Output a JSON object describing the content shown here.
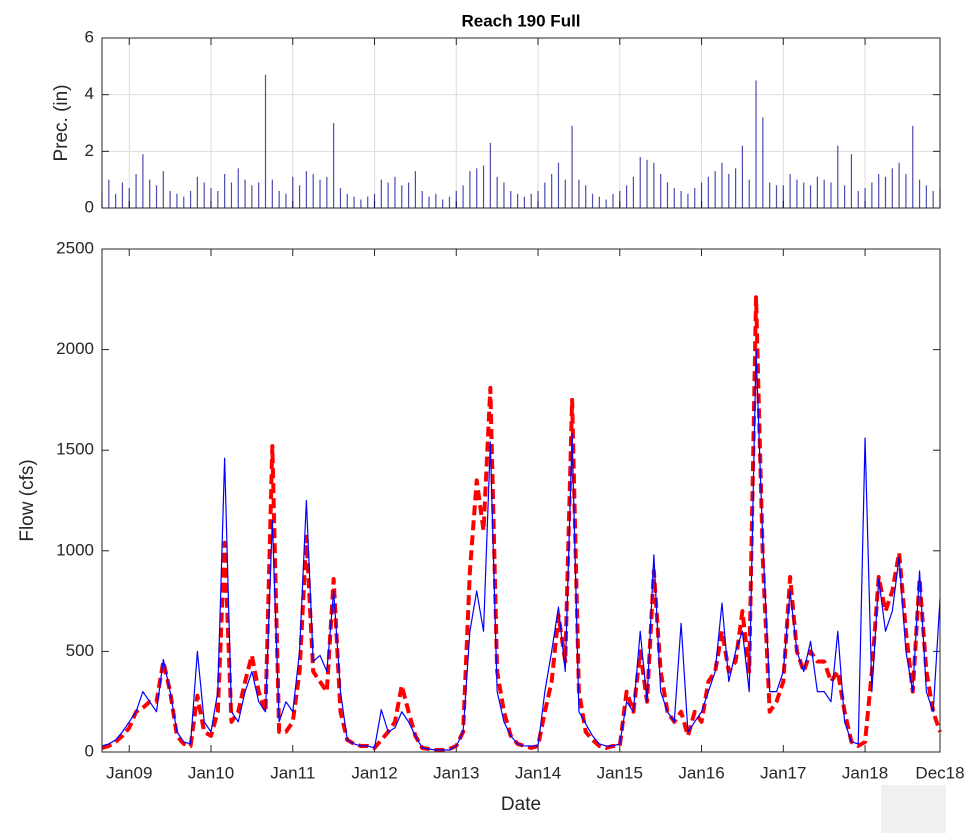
{
  "chart_data": [
    {
      "type": "bar",
      "title": "Reach 190 Full",
      "ylabel": "Prec. (in)",
      "color": "#00008b",
      "grid": true,
      "x": [
        "2008-09",
        "2008-10",
        "2008-11",
        "2008-12",
        "2009-01",
        "2009-02",
        "2009-03",
        "2009-04",
        "2009-05",
        "2009-06",
        "2009-07",
        "2009-08",
        "2009-09",
        "2009-10",
        "2009-11",
        "2009-12",
        "2010-01",
        "2010-02",
        "2010-03",
        "2010-04",
        "2010-05",
        "2010-06",
        "2010-07",
        "2010-08",
        "2010-09",
        "2010-10",
        "2010-11",
        "2010-12",
        "2011-01",
        "2011-02",
        "2011-03",
        "2011-04",
        "2011-05",
        "2011-06",
        "2011-07",
        "2011-08",
        "2011-09",
        "2011-10",
        "2011-11",
        "2011-12",
        "2012-01",
        "2012-02",
        "2012-03",
        "2012-04",
        "2012-05",
        "2012-06",
        "2012-07",
        "2012-08",
        "2012-09",
        "2012-10",
        "2012-11",
        "2012-12",
        "2013-01",
        "2013-02",
        "2013-03",
        "2013-04",
        "2013-05",
        "2013-06",
        "2013-07",
        "2013-08",
        "2013-09",
        "2013-10",
        "2013-11",
        "2013-12",
        "2014-01",
        "2014-02",
        "2014-03",
        "2014-04",
        "2014-05",
        "2014-06",
        "2014-07",
        "2014-08",
        "2014-09",
        "2014-10",
        "2014-11",
        "2014-12",
        "2015-01",
        "2015-02",
        "2015-03",
        "2015-04",
        "2015-05",
        "2015-06",
        "2015-07",
        "2015-08",
        "2015-09",
        "2015-10",
        "2015-11",
        "2015-12",
        "2016-01",
        "2016-02",
        "2016-03",
        "2016-04",
        "2016-05",
        "2016-06",
        "2016-07",
        "2016-08",
        "2016-09",
        "2016-10",
        "2016-11",
        "2016-12",
        "2017-01",
        "2017-02",
        "2017-03",
        "2017-04",
        "2017-05",
        "2017-06",
        "2017-07",
        "2017-08",
        "2017-09",
        "2017-10",
        "2017-11",
        "2017-12",
        "2018-01",
        "2018-02",
        "2018-03",
        "2018-04",
        "2018-05",
        "2018-06",
        "2018-07",
        "2018-08",
        "2018-09",
        "2018-10",
        "2018-11",
        "2018-12"
      ],
      "values": [
        0.6,
        1.0,
        0.5,
        0.9,
        0.7,
        1.2,
        1.9,
        1.0,
        0.8,
        1.3,
        0.6,
        0.5,
        0.4,
        0.6,
        1.1,
        0.9,
        0.7,
        0.6,
        1.2,
        0.9,
        1.4,
        1.0,
        0.8,
        0.9,
        4.7,
        1.0,
        0.6,
        0.5,
        1.1,
        0.8,
        1.3,
        1.2,
        1.0,
        1.1,
        3.0,
        0.7,
        0.5,
        0.4,
        0.3,
        0.4,
        0.5,
        1.0,
        0.9,
        1.1,
        0.8,
        0.9,
        1.3,
        0.6,
        0.4,
        0.5,
        0.3,
        0.4,
        0.6,
        0.8,
        1.3,
        1.4,
        1.5,
        2.3,
        1.1,
        0.9,
        0.6,
        0.5,
        0.4,
        0.5,
        0.6,
        0.9,
        1.2,
        1.6,
        1.0,
        2.9,
        1.0,
        0.8,
        0.5,
        0.4,
        0.3,
        0.5,
        0.6,
        0.8,
        1.1,
        1.8,
        1.7,
        1.6,
        1.2,
        0.9,
        0.7,
        0.6,
        0.5,
        0.7,
        0.9,
        1.1,
        1.3,
        1.6,
        1.2,
        1.4,
        2.2,
        1.0,
        4.5,
        3.2,
        0.9,
        0.8,
        0.8,
        1.2,
        1.0,
        0.9,
        0.8,
        1.1,
        1.0,
        0.9,
        2.2,
        0.8,
        1.9,
        0.6,
        0.7,
        0.9,
        1.2,
        1.1,
        1.4,
        1.6,
        1.2,
        2.9,
        1.0,
        0.8,
        0.6,
        0.7
      ],
      "xlim": [
        "2008-09",
        "2018-12"
      ],
      "xticks": [
        "2009-01",
        "2010-01",
        "2011-01",
        "2012-01",
        "2013-01",
        "2014-01",
        "2015-01",
        "2016-01",
        "2017-01",
        "2018-01",
        "2018-12"
      ],
      "ylim": [
        0,
        6
      ],
      "yticks": [
        0,
        2,
        4,
        6
      ]
    },
    {
      "type": "line",
      "xlabel": "Date",
      "ylabel": "Flow (cfs)",
      "grid": false,
      "x": [
        "2008-09",
        "2008-10",
        "2008-11",
        "2008-12",
        "2009-01",
        "2009-02",
        "2009-03",
        "2009-04",
        "2009-05",
        "2009-06",
        "2009-07",
        "2009-08",
        "2009-09",
        "2009-10",
        "2009-11",
        "2009-12",
        "2010-01",
        "2010-02",
        "2010-03",
        "2010-04",
        "2010-05",
        "2010-06",
        "2010-07",
        "2010-08",
        "2010-09",
        "2010-10",
        "2010-11",
        "2010-12",
        "2011-01",
        "2011-02",
        "2011-03",
        "2011-04",
        "2011-05",
        "2011-06",
        "2011-07",
        "2011-08",
        "2011-09",
        "2011-10",
        "2011-11",
        "2011-12",
        "2012-01",
        "2012-02",
        "2012-03",
        "2012-04",
        "2012-05",
        "2012-06",
        "2012-07",
        "2012-08",
        "2012-09",
        "2012-10",
        "2012-11",
        "2012-12",
        "2013-01",
        "2013-02",
        "2013-03",
        "2013-04",
        "2013-05",
        "2013-06",
        "2013-07",
        "2013-08",
        "2013-09",
        "2013-10",
        "2013-11",
        "2013-12",
        "2014-01",
        "2014-02",
        "2014-03",
        "2014-04",
        "2014-05",
        "2014-06",
        "2014-07",
        "2014-08",
        "2014-09",
        "2014-10",
        "2014-11",
        "2014-12",
        "2015-01",
        "2015-02",
        "2015-03",
        "2015-04",
        "2015-05",
        "2015-06",
        "2015-07",
        "2015-08",
        "2015-09",
        "2015-10",
        "2015-11",
        "2015-12",
        "2016-01",
        "2016-02",
        "2016-03",
        "2016-04",
        "2016-05",
        "2016-06",
        "2016-07",
        "2016-08",
        "2016-09",
        "2016-10",
        "2016-11",
        "2016-12",
        "2017-01",
        "2017-02",
        "2017-03",
        "2017-04",
        "2017-05",
        "2017-06",
        "2017-07",
        "2017-08",
        "2017-09",
        "2017-10",
        "2017-11",
        "2017-12",
        "2018-01",
        "2018-02",
        "2018-03",
        "2018-04",
        "2018-05",
        "2018-06",
        "2018-07",
        "2018-08",
        "2018-09",
        "2018-10",
        "2018-11",
        "2018-12"
      ],
      "series": [
        {
          "color": "#ff0000",
          "dashed": true,
          "values": [
            20,
            30,
            50,
            80,
            120,
            200,
            220,
            250,
            250,
            450,
            300,
            80,
            40,
            30,
            280,
            100,
            80,
            200,
            1040,
            150,
            200,
            350,
            480,
            300,
            200,
            1520,
            100,
            100,
            150,
            400,
            1070,
            400,
            350,
            300,
            860,
            200,
            60,
            40,
            30,
            30,
            20,
            60,
            100,
            150,
            330,
            200,
            80,
            20,
            15,
            10,
            10,
            15,
            30,
            100,
            900,
            1350,
            1100,
            1810,
            400,
            200,
            80,
            40,
            30,
            20,
            30,
            200,
            350,
            680,
            450,
            1750,
            300,
            100,
            60,
            30,
            20,
            30,
            30,
            300,
            200,
            500,
            250,
            900,
            400,
            200,
            150,
            200,
            80,
            200,
            150,
            350,
            400,
            600,
            400,
            450,
            700,
            400,
            2260,
            950,
            200,
            250,
            350,
            870,
            500,
            400,
            500,
            450,
            450,
            350,
            400,
            200,
            50,
            30,
            50,
            400,
            870,
            700,
            800,
            990,
            600,
            300,
            860,
            400,
            200,
            100
          ]
        },
        {
          "color": "#0000ff",
          "dashed": false,
          "values": [
            30,
            40,
            60,
            100,
            150,
            200,
            300,
            250,
            200,
            460,
            300,
            100,
            50,
            40,
            500,
            150,
            100,
            300,
            1460,
            200,
            150,
            300,
            400,
            250,
            200,
            1150,
            150,
            250,
            200,
            500,
            1250,
            450,
            480,
            400,
            800,
            300,
            60,
            40,
            30,
            30,
            20,
            210,
            100,
            120,
            200,
            150,
            80,
            20,
            15,
            10,
            10,
            10,
            30,
            100,
            600,
            800,
            600,
            1540,
            300,
            150,
            80,
            40,
            30,
            30,
            30,
            300,
            500,
            720,
            400,
            1580,
            200,
            140,
            80,
            40,
            30,
            30,
            40,
            250,
            200,
            600,
            250,
            980,
            300,
            200,
            150,
            640,
            100,
            150,
            200,
            300,
            400,
            740,
            350,
            500,
            600,
            300,
            2000,
            1030,
            300,
            300,
            400,
            800,
            500,
            400,
            550,
            300,
            300,
            250,
            600,
            150,
            50,
            40,
            1560,
            300,
            860,
            600,
            700,
            970,
            500,
            300,
            900,
            300,
            200,
            760
          ]
        }
      ],
      "xlim": [
        "2008-09",
        "2018-12"
      ],
      "xticks": [
        {
          "value": "2009-01",
          "label": "Jan09"
        },
        {
          "value": "2010-01",
          "label": "Jan10"
        },
        {
          "value": "2011-01",
          "label": "Jan11"
        },
        {
          "value": "2012-01",
          "label": "Jan12"
        },
        {
          "value": "2013-01",
          "label": "Jan13"
        },
        {
          "value": "2014-01",
          "label": "Jan14"
        },
        {
          "value": "2015-01",
          "label": "Jan15"
        },
        {
          "value": "2016-01",
          "label": "Jan16"
        },
        {
          "value": "2017-01",
          "label": "Jan17"
        },
        {
          "value": "2018-01",
          "label": "Jan18"
        },
        {
          "value": "2018-12",
          "label": "Dec18"
        }
      ],
      "ylim": [
        0,
        2500
      ],
      "yticks": [
        0,
        500,
        1000,
        1500,
        2000,
        2500
      ]
    }
  ]
}
